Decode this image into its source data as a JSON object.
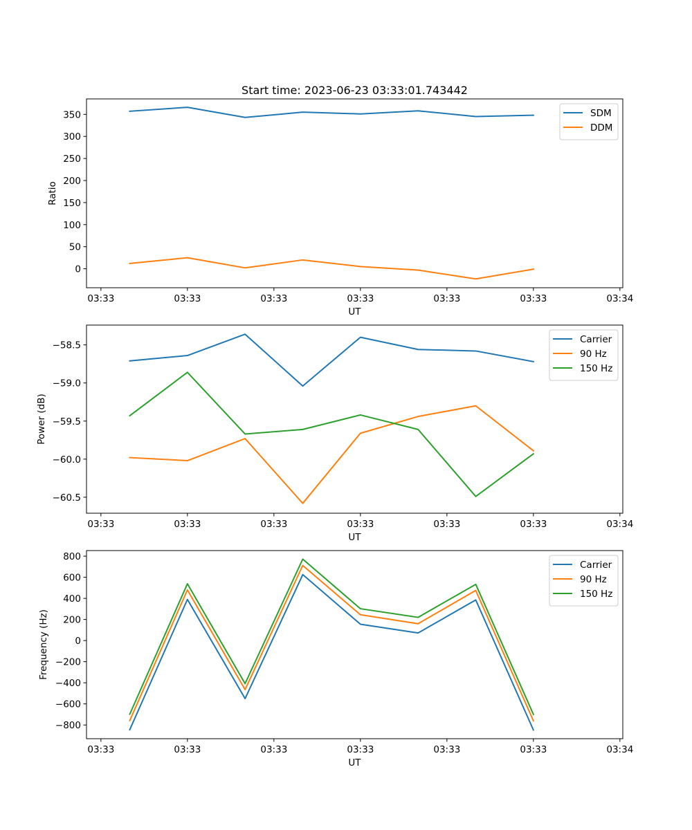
{
  "figure": {
    "title": "Start time: 2023-06-23 03:33:01.743442"
  },
  "chart_data": [
    {
      "type": "line",
      "title": "Start time: 2023-06-23 03:33:01.743442",
      "xlabel": "UT",
      "ylabel": "Ratio",
      "x_tick_labels": [
        "03:33",
        "03:33",
        "03:33",
        "03:33",
        "03:33",
        "03:33",
        "03:34"
      ],
      "x": [
        1,
        2,
        3,
        4,
        5,
        6,
        7,
        8
      ],
      "xlim": [
        0.25,
        9.55
      ],
      "ylim": [
        -43,
        385
      ],
      "yticks": [
        0,
        50,
        100,
        150,
        200,
        250,
        300,
        350
      ],
      "legend_position": "upper right",
      "series": [
        {
          "name": "SDM",
          "color": "#1f77b4",
          "values": [
            357,
            366,
            343,
            355,
            351,
            358,
            345,
            348
          ]
        },
        {
          "name": "DDM",
          "color": "#ff7f0e",
          "values": [
            12,
            25,
            2,
            20,
            5,
            -3,
            -23,
            -1
          ]
        }
      ]
    },
    {
      "type": "line",
      "title": "",
      "xlabel": "UT",
      "ylabel": "Power (dB)",
      "x_tick_labels": [
        "03:33",
        "03:33",
        "03:33",
        "03:33",
        "03:33",
        "03:33",
        "03:34"
      ],
      "x": [
        1,
        2,
        3,
        4,
        5,
        6,
        7,
        8
      ],
      "xlim": [
        0.25,
        9.55
      ],
      "ylim": [
        -60.71,
        -58.24
      ],
      "yticks": [
        -60.5,
        -60.0,
        -59.5,
        -59.0,
        -58.5
      ],
      "ytick_labels": [
        "−60.5",
        "−60.0",
        "−59.5",
        "−59.0",
        "−58.5"
      ],
      "legend_position": "upper right",
      "series": [
        {
          "name": "Carrier",
          "color": "#1f77b4",
          "values": [
            -58.71,
            -58.64,
            -58.36,
            -59.04,
            -58.4,
            -58.56,
            -58.58,
            -58.72
          ]
        },
        {
          "name": "90 Hz",
          "color": "#ff7f0e",
          "values": [
            -59.98,
            -60.02,
            -59.73,
            -60.58,
            -59.66,
            -59.44,
            -59.3,
            -59.89
          ]
        },
        {
          "name": "150 Hz",
          "color": "#2ca02c",
          "values": [
            -59.43,
            -58.86,
            -59.67,
            -59.61,
            -59.42,
            -59.61,
            -60.49,
            -59.93
          ]
        }
      ]
    },
    {
      "type": "line",
      "title": "",
      "xlabel": "UT",
      "ylabel": "Frequency (Hz)",
      "x_tick_labels": [
        "03:33",
        "03:33",
        "03:33",
        "03:33",
        "03:33",
        "03:33",
        "03:34"
      ],
      "x": [
        1,
        2,
        3,
        4,
        5,
        6,
        7,
        8
      ],
      "xlim": [
        0.25,
        9.55
      ],
      "ylim": [
        -930,
        853
      ],
      "yticks": [
        -800,
        -600,
        -400,
        -200,
        0,
        200,
        400,
        600,
        800
      ],
      "ytick_labels": [
        "−800",
        "−600",
        "−400",
        "−200",
        "0",
        "200",
        "400",
        "600",
        "800"
      ],
      "legend_position": "upper right",
      "series": [
        {
          "name": "Carrier",
          "color": "#1f77b4",
          "values": [
            -845,
            390,
            -550,
            625,
            155,
            72,
            385,
            -848
          ]
        },
        {
          "name": "90 Hz",
          "color": "#ff7f0e",
          "values": [
            -758,
            480,
            -465,
            712,
            245,
            160,
            475,
            -760
          ]
        },
        {
          "name": "150 Hz",
          "color": "#2ca02c",
          "values": [
            -698,
            538,
            -408,
            772,
            302,
            220,
            533,
            -700
          ]
        }
      ]
    }
  ]
}
